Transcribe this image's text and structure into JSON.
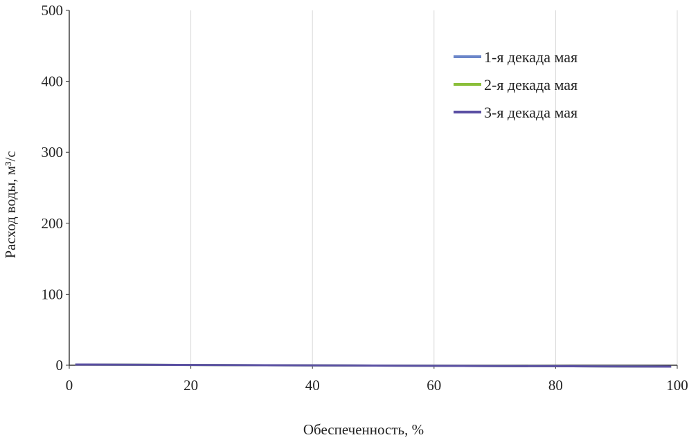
{
  "chart_data": {
    "type": "line",
    "title": "",
    "xlabel": "Обеспеченность, %",
    "ylabel": "Расход воды, м³/с",
    "xlim": [
      0,
      100
    ],
    "ylim": [
      0,
      500
    ],
    "xticks": [
      "0",
      "20",
      "40",
      "60",
      "80",
      "100"
    ],
    "yticks": [
      "0",
      "100",
      "200",
      "300",
      "400",
      "500"
    ],
    "grid": "vertical",
    "legend_position": "top-right",
    "x": [
      1,
      99
    ],
    "series": [
      {
        "name": "1-я декада мая",
        "color": "#6b86c9",
        "values": [
          1,
          -2
        ]
      },
      {
        "name": "2-я декада мая",
        "color": "#8bbf3a",
        "values": [
          1,
          -2
        ]
      },
      {
        "name": "3-я декада мая",
        "color": "#5a4fa3",
        "values": [
          1,
          -2
        ]
      }
    ]
  }
}
